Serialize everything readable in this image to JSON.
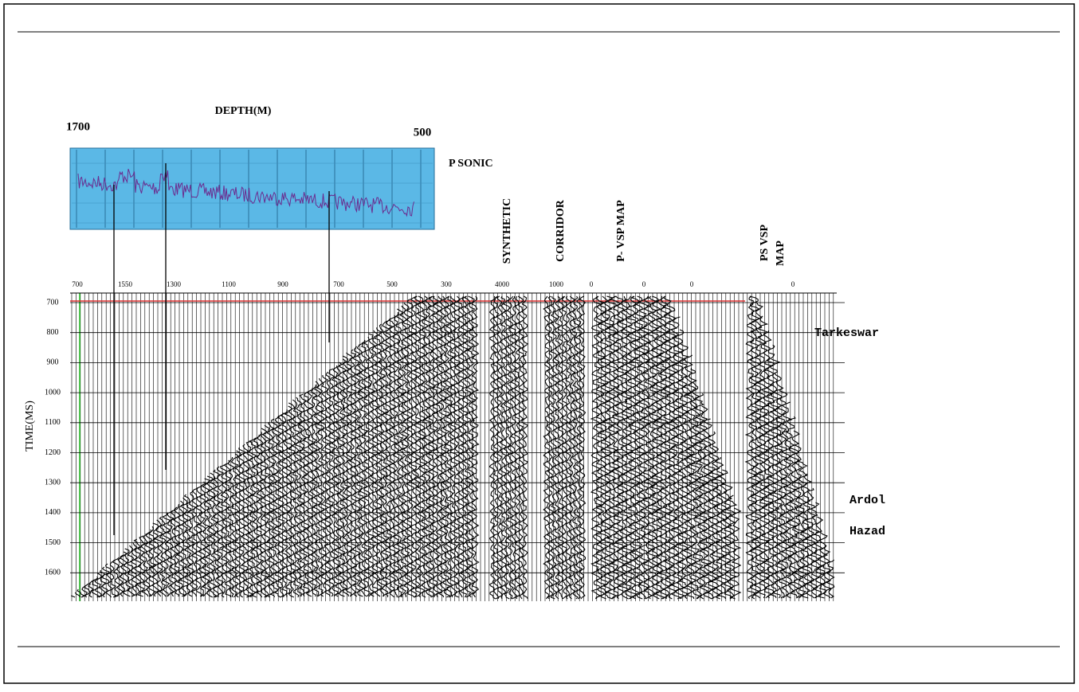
{
  "figure": {
    "depth_title": "DEPTH(M)",
    "depth_left": "1700",
    "depth_right": "500",
    "sonic_label": "P SONIC",
    "panel_labels": [
      "SYNTHETIC",
      "CORRIDOR",
      "P- VSP MAP",
      "PS VSP",
      "MAP"
    ],
    "y_label": "TIME(MS)",
    "top_ticks": [
      "700",
      "1550",
      "1300",
      "1100",
      "900",
      "700",
      "500",
      "300",
      "4000",
      "1000",
      "0",
      "0",
      "0",
      "0"
    ],
    "time_ticks": [
      "700",
      "800",
      "900",
      "1000",
      "1100",
      "1200",
      "1300",
      "1400",
      "1500",
      "1600"
    ],
    "horizons": [
      "Tarkeswar",
      "Ardol",
      "Hazad"
    ]
  }
}
